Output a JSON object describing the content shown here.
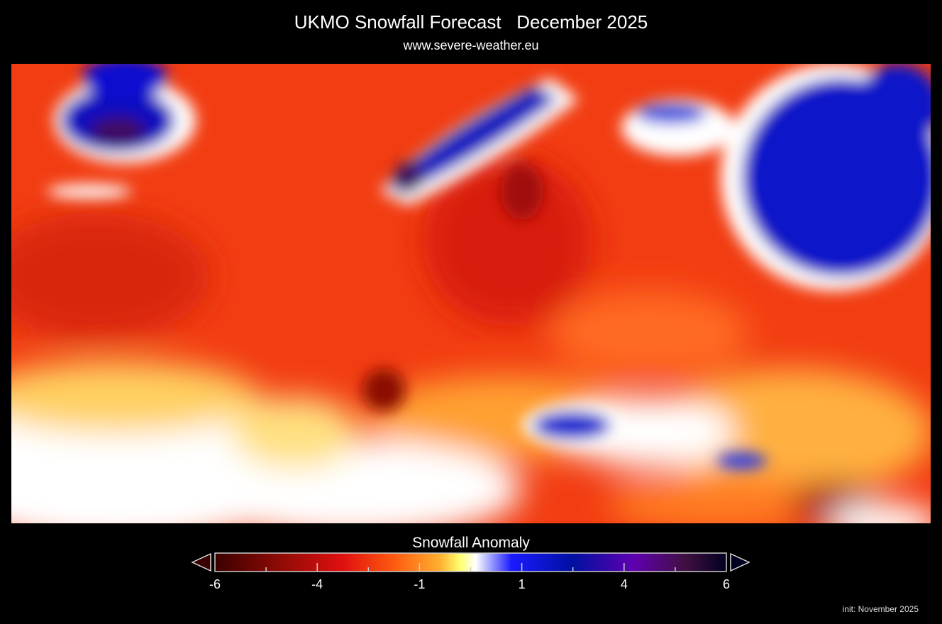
{
  "header": {
    "title": "UKMO Snowfall Forecast   December 2025",
    "subtitle": "www.severe-weather.eu"
  },
  "map": {
    "region": "Europe",
    "background_color": "#000000"
  },
  "legend": {
    "title": "Snowfall Anomaly",
    "tick_labels": [
      "-6",
      "-4",
      "-1",
      "1",
      "4",
      "6"
    ],
    "range": [
      -6,
      6
    ],
    "colors": [
      "#3a0000",
      "#8a0a05",
      "#e01010",
      "#ff5a10",
      "#ffb030",
      "#ffff70",
      "#ffffff",
      "#1a1aff",
      "#0010a0",
      "#6000b0",
      "#401040",
      "#000020"
    ],
    "extend": "both"
  },
  "footer": {
    "init": "init: November 2025"
  }
}
